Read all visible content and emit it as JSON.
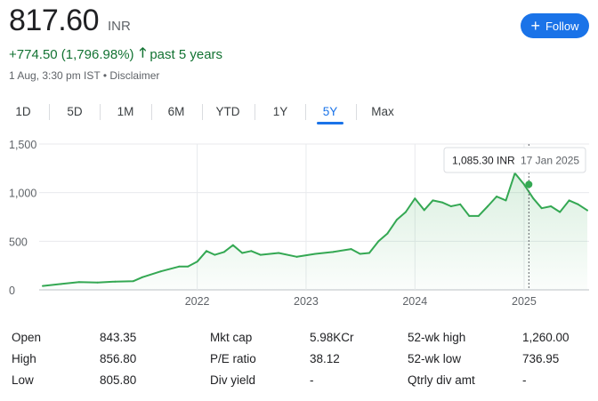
{
  "quote": {
    "price": "817.60",
    "currency": "INR",
    "change": "+774.50 (1,796.98%)",
    "change_period": "past 5 years",
    "timestamp": "1 Aug, 3:30 pm IST",
    "disclaimer": "Disclaimer",
    "follow_label": "Follow"
  },
  "colors": {
    "accent": "#1a73e8",
    "positive": "#137333",
    "line": "#34a853"
  },
  "tabs": [
    {
      "label": "1D"
    },
    {
      "label": "5D"
    },
    {
      "label": "1M"
    },
    {
      "label": "6M"
    },
    {
      "label": "YTD"
    },
    {
      "label": "1Y"
    },
    {
      "label": "5Y",
      "active": true
    },
    {
      "label": "Max"
    }
  ],
  "tooltip": {
    "value": "1,085.30 INR",
    "date": "17 Jan 2025"
  },
  "chart_data": {
    "type": "area",
    "title": "",
    "xlabel": "",
    "ylabel": "",
    "y_ticks": [
      "1,500",
      "1,000",
      "500",
      "0"
    ],
    "x_ticks": [
      "2022",
      "2023",
      "2024",
      "2025"
    ],
    "ylim": [
      0,
      1500
    ],
    "grid": true,
    "series": [
      {
        "x": [
          "2020-08",
          "2020-10",
          "2020-12",
          "2021-02",
          "2021-04",
          "2021-06",
          "2021-07",
          "2021-09",
          "2021-11",
          "2021-12",
          "2022-01",
          "2022-02",
          "2022-03",
          "2022-04",
          "2022-05",
          "2022-06",
          "2022-07",
          "2022-08",
          "2022-10",
          "2022-12",
          "2023-02",
          "2023-04",
          "2023-06",
          "2023-07",
          "2023-08",
          "2023-09",
          "2023-10",
          "2023-11",
          "2023-12",
          "2024-01",
          "2024-02",
          "2024-03",
          "2024-04",
          "2024-05",
          "2024-06",
          "2024-07",
          "2024-08",
          "2024-09",
          "2024-10",
          "2024-11",
          "2024-12",
          "2025-01",
          "2025-02",
          "2025-03",
          "2025-04",
          "2025-05",
          "2025-06",
          "2025-07",
          "2025-08"
        ],
        "values": [
          40,
          60,
          80,
          75,
          85,
          90,
          130,
          190,
          240,
          240,
          290,
          400,
          360,
          390,
          460,
          380,
          400,
          360,
          380,
          340,
          370,
          390,
          420,
          370,
          380,
          500,
          580,
          720,
          800,
          940,
          820,
          920,
          900,
          860,
          880,
          760,
          760,
          860,
          960,
          920,
          1200,
          1085,
          940,
          840,
          860,
          800,
          920,
          880,
          818
        ]
      }
    ]
  },
  "stats": [
    {
      "label": "Open",
      "value": "843.35"
    },
    {
      "label": "High",
      "value": "856.80"
    },
    {
      "label": "Low",
      "value": "805.80"
    },
    {
      "label": "Mkt cap",
      "value": "5.98KCr"
    },
    {
      "label": "P/E ratio",
      "value": "38.12"
    },
    {
      "label": "Div yield",
      "value": "-"
    },
    {
      "label": "52-wk high",
      "value": "1,260.00"
    },
    {
      "label": "52-wk low",
      "value": "736.95"
    },
    {
      "label": "Qtrly div amt",
      "value": "-"
    }
  ]
}
